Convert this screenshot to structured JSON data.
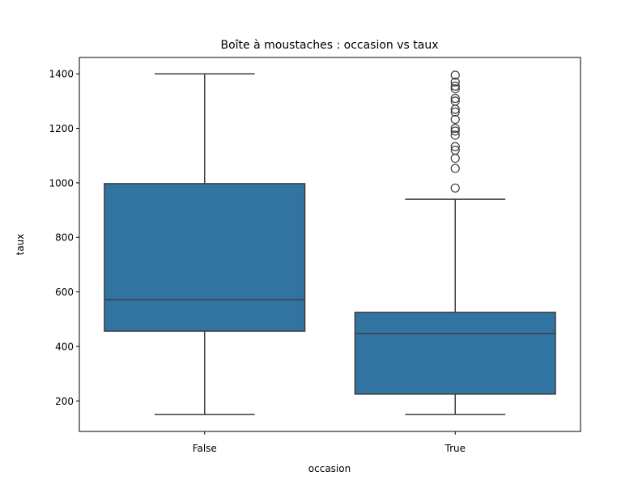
{
  "chart_data": {
    "type": "box",
    "title": "Boîte à moustaches : occasion vs taux",
    "xlabel": "occasion",
    "ylabel": "taux",
    "ylim": [
      88,
      1460
    ],
    "yticks": [
      200,
      400,
      600,
      800,
      1000,
      1200,
      1400
    ],
    "categories": [
      "False",
      "True"
    ],
    "boxes": [
      {
        "category": "False",
        "whisker_low": 150,
        "q1": 456,
        "median": 571,
        "q3": 997,
        "whisker_high": 1400,
        "outliers": []
      },
      {
        "category": "True",
        "whisker_low": 150,
        "q1": 225,
        "median": 447,
        "q3": 525,
        "whisker_high": 940,
        "outliers": [
          981,
          1053,
          1090,
          1120,
          1133,
          1175,
          1190,
          1200,
          1233,
          1260,
          1270,
          1300,
          1310,
          1345,
          1355,
          1370,
          1395
        ]
      }
    ],
    "box_color": "#3274a1",
    "line_color": "#3d3d3d",
    "grid": false,
    "legend": "none"
  }
}
